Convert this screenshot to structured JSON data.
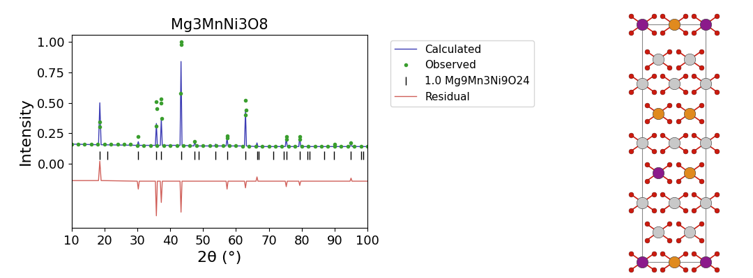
{
  "chart_data": {
    "type": "line",
    "title": "Mg3MnNi3O8",
    "x_label": "2θ (°)",
    "y_label": "Intensity",
    "xlim": [
      10,
      100
    ],
    "xticks": [
      10,
      20,
      30,
      40,
      50,
      60,
      70,
      80,
      90,
      100
    ],
    "ylim": [
      -0.53,
      1.06
    ],
    "yticks": [
      {
        "value": 0,
        "label": "0.00"
      },
      {
        "value": 0.25,
        "label": "0.25"
      },
      {
        "value": 0.5,
        "label": "0.50"
      },
      {
        "value": 0.75,
        "label": "0.75"
      },
      {
        "value": 1.0,
        "label": "1.00"
      }
    ],
    "legend": "upper left",
    "series": [
      {
        "name": "Calculated",
        "type": "line",
        "color": "#3c3cb4",
        "x": [
          10,
          18.2,
          18.6,
          19.0,
          30.0,
          30.3,
          30.6,
          35.5,
          35.8,
          36.1,
          37.0,
          37.3,
          37.6,
          43.0,
          43.3,
          43.6,
          47.2,
          47.5,
          47.8,
          53.5,
          53.8,
          54.1,
          57.0,
          57.3,
          57.6,
          62.6,
          62.9,
          63.2,
          66.1,
          66.4,
          66.7,
          75.0,
          75.3,
          75.6,
          79.1,
          79.4,
          79.7,
          89.7,
          90.0,
          90.3,
          94.7,
          95.0,
          95.3,
          100
        ],
        "values": [
          0.16,
          0.155,
          0.5,
          0.155,
          0.15,
          0.18,
          0.15,
          0.15,
          0.33,
          0.15,
          0.15,
          0.37,
          0.15,
          0.15,
          0.84,
          0.15,
          0.145,
          0.18,
          0.145,
          0.145,
          0.16,
          0.145,
          0.145,
          0.21,
          0.145,
          0.145,
          0.44,
          0.145,
          0.14,
          0.17,
          0.14,
          0.14,
          0.21,
          0.14,
          0.14,
          0.22,
          0.14,
          0.14,
          0.16,
          0.14,
          0.14,
          0.18,
          0.14,
          0.14
        ]
      },
      {
        "name": "Observed",
        "type": "scatter",
        "marker": "o",
        "color": "#3a9e2e",
        "x": [
          10,
          12,
          14,
          16,
          18,
          20,
          22,
          24,
          26,
          28,
          30,
          32,
          34,
          36,
          38,
          40,
          42,
          44,
          46,
          48,
          50,
          52,
          54,
          56,
          58,
          60,
          62,
          64,
          66,
          68,
          70,
          72,
          74,
          76,
          78,
          80,
          82,
          84,
          86,
          88,
          90,
          92,
          94,
          96,
          98,
          100,
          18.5,
          18.6,
          30.3,
          35.7,
          35.8,
          35.9,
          37.2,
          37.3,
          37.4,
          43.2,
          43.3,
          43.4,
          47.5,
          57.3,
          57.4,
          62.8,
          62.9,
          63.0,
          75.3,
          75.4,
          79.4,
          79.5,
          90.0,
          95.0
        ],
        "values": [
          0.16,
          0.16,
          0.16,
          0.16,
          0.16,
          0.16,
          0.16,
          0.16,
          0.16,
          0.16,
          0.15,
          0.15,
          0.15,
          0.15,
          0.15,
          0.15,
          0.15,
          0.15,
          0.15,
          0.15,
          0.15,
          0.15,
          0.15,
          0.15,
          0.15,
          0.15,
          0.14,
          0.14,
          0.14,
          0.14,
          0.14,
          0.14,
          0.14,
          0.14,
          0.14,
          0.14,
          0.14,
          0.14,
          0.14,
          0.14,
          0.14,
          0.14,
          0.14,
          0.14,
          0.14,
          0.14,
          0.3,
          0.34,
          0.22,
          0.31,
          0.51,
          0.45,
          0.5,
          0.53,
          0.37,
          0.58,
          1.0,
          0.98,
          0.18,
          0.23,
          0.21,
          0.4,
          0.52,
          0.44,
          0.22,
          0.2,
          0.22,
          0.2,
          0.16,
          0.17
        ]
      },
      {
        "name": "1.0 Mg9Mn3Ni9O24",
        "type": "reflections",
        "marker": "|",
        "color": "#000000",
        "x": [
          18.6,
          21.0,
          30.3,
          35.8,
          37.3,
          43.3,
          47.5,
          48.6,
          53.8,
          57.3,
          62.9,
          66.4,
          67.0,
          71.3,
          74.5,
          75.3,
          79.4,
          81.8,
          82.3,
          86.9,
          89.9,
          94.9,
          98.0,
          98.7
        ]
      },
      {
        "name": "Residual",
        "type": "line",
        "color": "#d0605a",
        "x": [
          10,
          18.2,
          18.6,
          19.0,
          30.0,
          30.3,
          30.6,
          35.5,
          35.8,
          36.1,
          37.0,
          37.3,
          37.6,
          43.0,
          43.3,
          43.6,
          57.0,
          57.3,
          57.6,
          62.6,
          62.9,
          63.2,
          66.1,
          66.4,
          66.7,
          75.0,
          75.3,
          75.6,
          79.1,
          79.4,
          79.7,
          94.7,
          95.0,
          95.3,
          100
        ],
        "values": [
          -0.14,
          -0.14,
          0.02,
          -0.14,
          -0.145,
          -0.21,
          -0.145,
          -0.145,
          -0.43,
          -0.145,
          -0.145,
          -0.32,
          -0.145,
          -0.145,
          -0.4,
          -0.145,
          -0.145,
          -0.21,
          -0.145,
          -0.145,
          -0.2,
          -0.145,
          -0.145,
          -0.11,
          -0.145,
          -0.145,
          -0.19,
          -0.145,
          -0.145,
          -0.18,
          -0.145,
          -0.145,
          -0.12,
          -0.145,
          -0.145
        ]
      }
    ]
  }
}
